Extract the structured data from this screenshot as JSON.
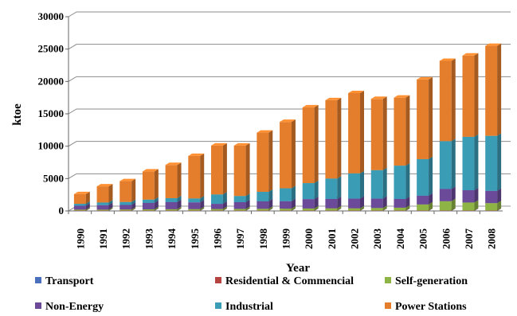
{
  "chart_data": {
    "type": "bar",
    "stacked": true,
    "title": "",
    "xlabel": "Year",
    "ylabel": "ktoe",
    "ylim": [
      0,
      30000
    ],
    "yticks": [
      0,
      5000,
      10000,
      15000,
      20000,
      25000,
      30000
    ],
    "grid": true,
    "legend_position": "bottom",
    "categories": [
      "1990",
      "1991",
      "1992",
      "1993",
      "1994",
      "1995",
      "1996",
      "1997",
      "1998",
      "1999",
      "2000",
      "2001",
      "2002",
      "2003",
      "2004",
      "2005",
      "2006",
      "2007",
      "2008"
    ],
    "series": [
      {
        "name": "Transport",
        "color": "#4a6fbd",
        "values": [
          20,
          20,
          20,
          20,
          20,
          20,
          20,
          20,
          20,
          20,
          20,
          20,
          20,
          20,
          20,
          20,
          20,
          20,
          20
        ]
      },
      {
        "name": "Residential & Commencial",
        "color": "#b5433f",
        "values": [
          30,
          30,
          30,
          30,
          30,
          30,
          30,
          30,
          30,
          30,
          30,
          30,
          30,
          30,
          30,
          30,
          30,
          30,
          30
        ]
      },
      {
        "name": "Self-generation",
        "color": "#8fb446",
        "values": [
          150,
          150,
          180,
          200,
          220,
          230,
          250,
          260,
          280,
          300,
          330,
          350,
          350,
          400,
          450,
          950,
          1450,
          1250,
          1150
        ]
      },
      {
        "name": "Non-Energy",
        "color": "#6b4a9a",
        "values": [
          600,
          700,
          700,
          1000,
          1100,
          1050,
          800,
          1050,
          1150,
          1150,
          1450,
          1450,
          1500,
          1450,
          1350,
          1350,
          1900,
          1900,
          1900
        ]
      },
      {
        "name": "Industrial",
        "color": "#3a9cb5",
        "values": [
          300,
          400,
          450,
          500,
          600,
          600,
          1450,
          950,
          1470,
          2000,
          2470,
          3150,
          3900,
          4400,
          5150,
          5650,
          7380,
          8250,
          8500
        ]
      },
      {
        "name": "Power Stations",
        "color": "#e57e2c",
        "values": [
          1500,
          2500,
          3220,
          4350,
          5130,
          6570,
          7550,
          7790,
          9150,
          10250,
          11700,
          12100,
          12400,
          11000,
          10500,
          12300,
          12400,
          12550,
          13900
        ]
      }
    ]
  }
}
